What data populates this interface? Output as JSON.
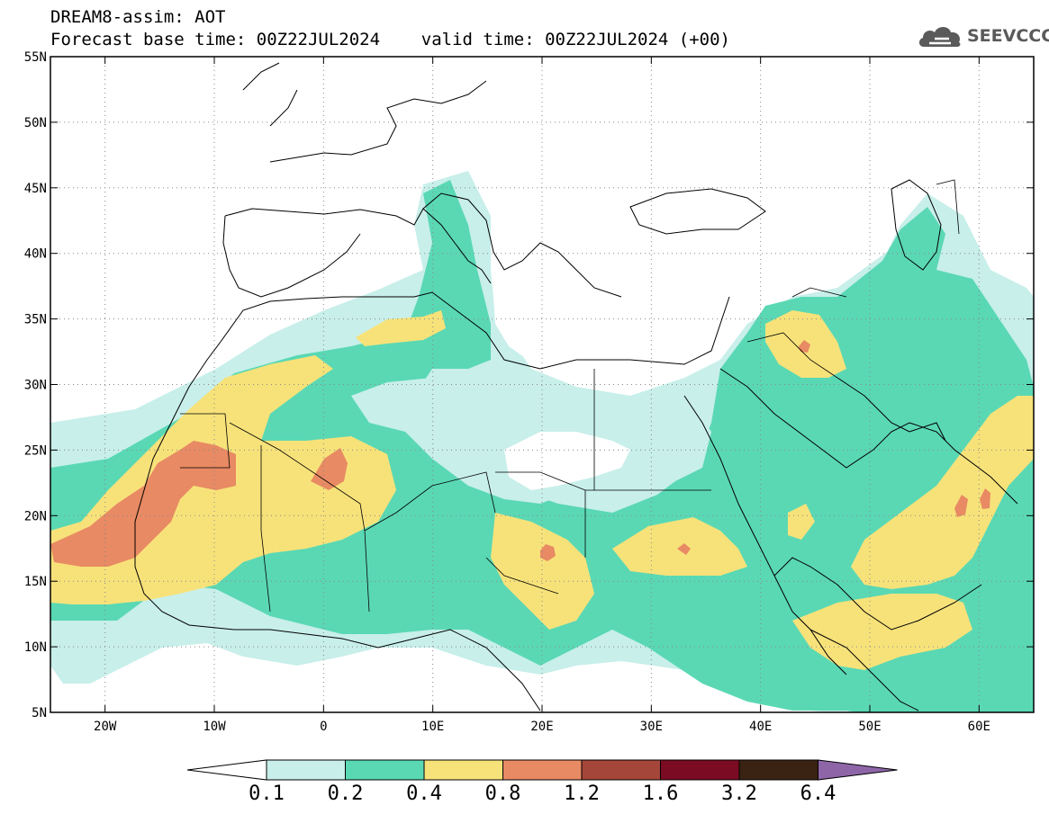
{
  "title": {
    "line1": "DREAM8-assim: AOT",
    "line2": "Forecast base time: 00Z22JUL2024    valid time: 00Z22JUL2024 (+00)"
  },
  "logo": {
    "text": "SEEVCCC",
    "icon": "cloud-icon"
  },
  "map": {
    "lon_range": [
      -25,
      65
    ],
    "lat_range": [
      5,
      55
    ],
    "lat_ticks": [
      {
        "value": 55,
        "label": "55N"
      },
      {
        "value": 50,
        "label": "50N"
      },
      {
        "value": 45,
        "label": "45N"
      },
      {
        "value": 40,
        "label": "40N"
      },
      {
        "value": 35,
        "label": "35N"
      },
      {
        "value": 30,
        "label": "30N"
      },
      {
        "value": 25,
        "label": "25N"
      },
      {
        "value": 20,
        "label": "20N"
      },
      {
        "value": 15,
        "label": "15N"
      },
      {
        "value": 10,
        "label": "10N"
      },
      {
        "value": 5,
        "label": "5N"
      }
    ],
    "lon_ticks": [
      {
        "value": -20,
        "label": "20W"
      },
      {
        "value": -10,
        "label": "10W"
      },
      {
        "value": 0,
        "label": "0"
      },
      {
        "value": 10,
        "label": "10E"
      },
      {
        "value": 20,
        "label": "20E"
      },
      {
        "value": 30,
        "label": "30E"
      },
      {
        "value": 40,
        "label": "40E"
      },
      {
        "value": 50,
        "label": "50E"
      },
      {
        "value": 60,
        "label": "60E"
      }
    ],
    "gridlines": "dotted"
  },
  "colorbar": {
    "colors": [
      "#ffffff",
      "#c8efea",
      "#5ad8b4",
      "#f7e27a",
      "#e88a63",
      "#a5463a",
      "#7a0b22",
      "#3a2313",
      "#8e66a8"
    ],
    "labels": [
      "0.1",
      "0.2",
      "0.4",
      "0.8",
      "1.2",
      "1.6",
      "3.2",
      "6.4"
    ]
  }
}
